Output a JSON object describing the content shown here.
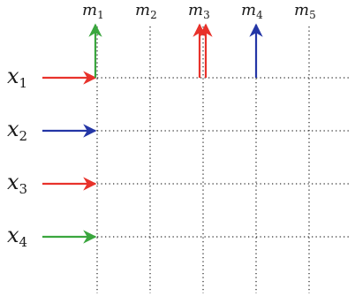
{
  "columns": [
    {
      "main": "m",
      "sub": "1"
    },
    {
      "main": "m",
      "sub": "2"
    },
    {
      "main": "m",
      "sub": "3"
    },
    {
      "main": "m",
      "sub": "4"
    },
    {
      "main": "m",
      "sub": "5"
    }
  ],
  "rows": [
    {
      "main": "x",
      "sub": "1",
      "arrow_color": "red"
    },
    {
      "main": "x",
      "sub": "2",
      "arrow_color": "blue"
    },
    {
      "main": "x",
      "sub": "3",
      "arrow_color": "red"
    },
    {
      "main": "x",
      "sub": "4",
      "arrow_color": "green"
    }
  ],
  "column_arrows": [
    {
      "column": "1",
      "colors": [
        "green"
      ]
    },
    {
      "column": "3",
      "colors": [
        "red",
        "red"
      ]
    },
    {
      "column": "4",
      "colors": [
        "blue"
      ]
    }
  ],
  "colors": {
    "red": "#e8322b",
    "blue": "#2436a6",
    "green": "#3aa63e",
    "grid": "#333333",
    "text": "#1a1a1a"
  }
}
